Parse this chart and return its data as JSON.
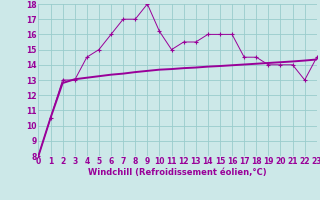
{
  "xlabel": "Windchill (Refroidissement éolien,°C)",
  "bg_color": "#cce8e8",
  "grid_color": "#99cccc",
  "line_color": "#990099",
  "x": [
    0,
    1,
    2,
    3,
    4,
    5,
    6,
    7,
    8,
    9,
    10,
    11,
    12,
    13,
    14,
    15,
    16,
    17,
    18,
    19,
    20,
    21,
    22,
    23
  ],
  "y_jagged": [
    8.0,
    10.5,
    13.0,
    13.0,
    14.5,
    15.0,
    16.0,
    17.0,
    17.0,
    18.0,
    16.2,
    15.0,
    15.5,
    15.5,
    16.0,
    16.0,
    16.0,
    14.5,
    14.5,
    14.0,
    14.0,
    14.0,
    13.0,
    14.5
  ],
  "y_smooth": [
    8.0,
    10.5,
    12.8,
    13.05,
    13.15,
    13.25,
    13.35,
    13.42,
    13.52,
    13.6,
    13.68,
    13.72,
    13.78,
    13.82,
    13.88,
    13.92,
    13.97,
    14.02,
    14.07,
    14.12,
    14.17,
    14.22,
    14.28,
    14.35
  ],
  "ylim": [
    8,
    18
  ],
  "xlim": [
    0,
    23
  ],
  "yticks": [
    8,
    9,
    10,
    11,
    12,
    13,
    14,
    15,
    16,
    17,
    18
  ],
  "xticks": [
    0,
    1,
    2,
    3,
    4,
    5,
    6,
    7,
    8,
    9,
    10,
    11,
    12,
    13,
    14,
    15,
    16,
    17,
    18,
    19,
    20,
    21,
    22,
    23
  ],
  "tick_fontsize": 5.5,
  "xlabel_fontsize": 6.0
}
